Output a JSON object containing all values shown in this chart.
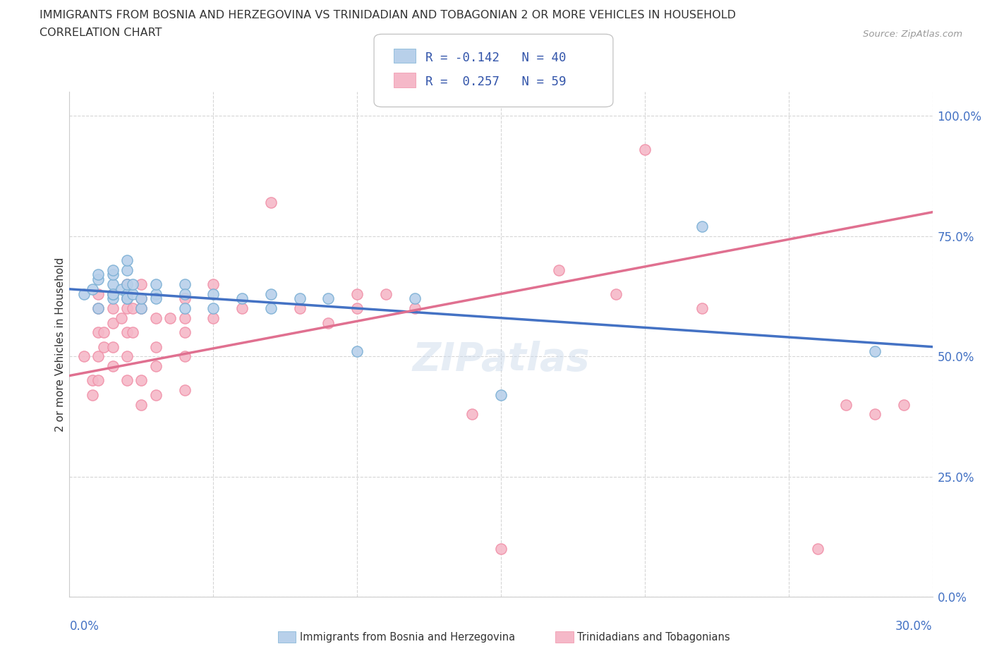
{
  "title_line1": "IMMIGRANTS FROM BOSNIA AND HERZEGOVINA VS TRINIDADIAN AND TOBAGONIAN 2 OR MORE VEHICLES IN HOUSEHOLD",
  "title_line2": "CORRELATION CHART",
  "source_text": "Source: ZipAtlas.com",
  "ylabel": "2 or more Vehicles in Household",
  "ytick_labels": [
    "0.0%",
    "25.0%",
    "50.0%",
    "75.0%",
    "100.0%"
  ],
  "ytick_values": [
    0.0,
    0.25,
    0.5,
    0.75,
    1.0
  ],
  "xmin": 0.0,
  "xmax": 0.3,
  "ymin": 0.0,
  "ymax": 1.05,
  "legend_R1": "-0.142",
  "legend_N1": "40",
  "legend_R2": "0.257",
  "legend_N2": "59",
  "color_blue": "#b8d0ea",
  "color_pink": "#f5b8c8",
  "color_blue_edge": "#7aafd4",
  "color_pink_edge": "#f090a8",
  "color_blue_line": "#4472c4",
  "color_pink_line": "#e07090",
  "watermark": "ZIPatlas",
  "blue_scatter_x": [
    0.005,
    0.008,
    0.01,
    0.01,
    0.01,
    0.015,
    0.015,
    0.015,
    0.015,
    0.015,
    0.015,
    0.018,
    0.02,
    0.02,
    0.02,
    0.02,
    0.02,
    0.02,
    0.022,
    0.022,
    0.025,
    0.025,
    0.03,
    0.03,
    0.03,
    0.04,
    0.04,
    0.04,
    0.05,
    0.05,
    0.06,
    0.07,
    0.07,
    0.08,
    0.09,
    0.1,
    0.12,
    0.15,
    0.22,
    0.28
  ],
  "blue_scatter_y": [
    0.63,
    0.64,
    0.66,
    0.67,
    0.6,
    0.62,
    0.63,
    0.65,
    0.67,
    0.68,
    0.63,
    0.64,
    0.62,
    0.63,
    0.65,
    0.68,
    0.7,
    0.62,
    0.63,
    0.65,
    0.6,
    0.62,
    0.63,
    0.65,
    0.62,
    0.65,
    0.63,
    0.6,
    0.63,
    0.6,
    0.62,
    0.63,
    0.6,
    0.62,
    0.62,
    0.51,
    0.62,
    0.42,
    0.77,
    0.51
  ],
  "pink_scatter_x": [
    0.005,
    0.008,
    0.008,
    0.01,
    0.01,
    0.01,
    0.01,
    0.01,
    0.012,
    0.012,
    0.015,
    0.015,
    0.015,
    0.015,
    0.015,
    0.018,
    0.02,
    0.02,
    0.02,
    0.02,
    0.02,
    0.02,
    0.022,
    0.022,
    0.025,
    0.025,
    0.025,
    0.025,
    0.025,
    0.03,
    0.03,
    0.03,
    0.03,
    0.035,
    0.04,
    0.04,
    0.04,
    0.04,
    0.04,
    0.05,
    0.05,
    0.06,
    0.07,
    0.08,
    0.09,
    0.1,
    0.1,
    0.11,
    0.12,
    0.14,
    0.15,
    0.17,
    0.19,
    0.2,
    0.22,
    0.26,
    0.27,
    0.28,
    0.29
  ],
  "pink_scatter_y": [
    0.5,
    0.45,
    0.42,
    0.63,
    0.6,
    0.55,
    0.5,
    0.45,
    0.55,
    0.52,
    0.63,
    0.6,
    0.57,
    0.52,
    0.48,
    0.58,
    0.65,
    0.62,
    0.6,
    0.55,
    0.5,
    0.45,
    0.6,
    0.55,
    0.65,
    0.62,
    0.6,
    0.45,
    0.4,
    0.58,
    0.52,
    0.48,
    0.42,
    0.58,
    0.62,
    0.58,
    0.55,
    0.5,
    0.43,
    0.65,
    0.58,
    0.6,
    0.82,
    0.6,
    0.57,
    0.63,
    0.6,
    0.63,
    0.6,
    0.38,
    0.1,
    0.68,
    0.63,
    0.93,
    0.6,
    0.1,
    0.4,
    0.38,
    0.4
  ],
  "blue_line_x": [
    0.0,
    0.3
  ],
  "blue_line_y": [
    0.64,
    0.52
  ],
  "pink_line_x": [
    0.0,
    0.3
  ],
  "pink_line_y": [
    0.46,
    0.8
  ]
}
